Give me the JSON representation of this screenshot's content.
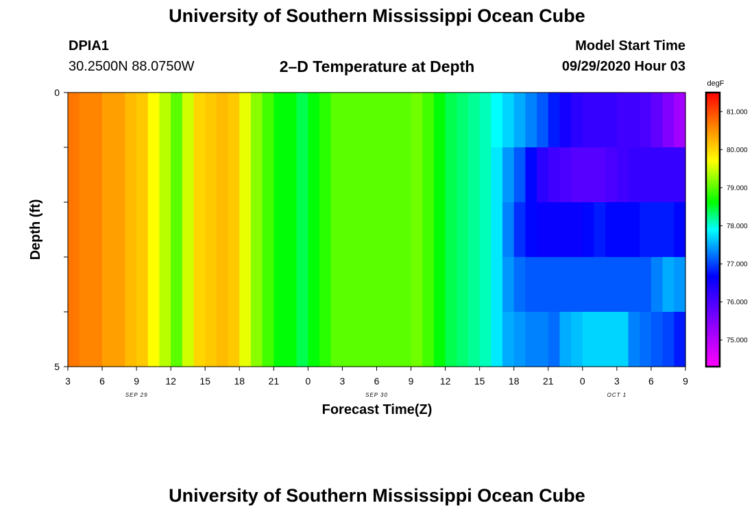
{
  "header": {
    "title": "University of Southern Mississippi Ocean Cube",
    "station_id": "DPIA1",
    "station_coords": "30.2500N 88.0750W",
    "plot_title": "2–D Temperature at Depth",
    "model_start_label": "Model Start Time",
    "model_start_value": "09/29/2020 Hour 03"
  },
  "footer": {
    "title": "University of Southern Mississippi Ocean Cube"
  },
  "chart_data": {
    "type": "heatmap",
    "title": "2–D Temperature at Depth",
    "xlabel": "Forecast Time(Z)",
    "ylabel": "Depth (ft)",
    "x_tick_labels": [
      "3",
      "6",
      "9",
      "12",
      "15",
      "18",
      "21",
      "0",
      "3",
      "6",
      "9",
      "12",
      "15",
      "18",
      "21",
      "0",
      "3",
      "6",
      "9"
    ],
    "date_labels": [
      {
        "label": "SEP 29",
        "tick_index": 2
      },
      {
        "label": "SEP 30",
        "tick_index": 9
      },
      {
        "label": "OCT 1",
        "tick_index": 16
      }
    ],
    "y_tick_labels": [
      {
        "label": "0",
        "value": 0
      },
      {
        "label": "5",
        "value": 5
      }
    ],
    "ylim": [
      0,
      5
    ],
    "depth_levels": 5,
    "time_steps_hours": 54,
    "colorbar": {
      "unit": "degF",
      "min": 74.3,
      "max": 81.5,
      "ticks": [
        "81.000",
        "80.000",
        "79.000",
        "78.000",
        "77.000",
        "76.000",
        "75.000"
      ],
      "tick_values": [
        81,
        80,
        79,
        78,
        77,
        76,
        75
      ]
    },
    "values_degF": [
      [
        80.7,
        80.6,
        80.6,
        80.4,
        80.4,
        80.2,
        80.1,
        79.7,
        79.4,
        79.0,
        79.5,
        80.0,
        80.1,
        80.2,
        80.1,
        79.6,
        79.2,
        78.9,
        78.6,
        78.6,
        78.4,
        78.6,
        78.8,
        79.0,
        79.0,
        79.0,
        79.0,
        79.0,
        79.0,
        79.0,
        79.1,
        78.9,
        78.6,
        78.4,
        78.3,
        78.2,
        78.1,
        77.9,
        77.7,
        77.5,
        77.3,
        77.1,
        76.8,
        76.5,
        76.3,
        76.2,
        76.2,
        76.2,
        76.1,
        76.1,
        76.0,
        75.8,
        75.5,
        75.2
      ],
      [
        80.7,
        80.6,
        80.6,
        80.4,
        80.4,
        80.2,
        80.1,
        79.7,
        79.4,
        79.0,
        79.5,
        80.0,
        80.1,
        80.2,
        80.1,
        79.6,
        79.2,
        78.9,
        78.6,
        78.6,
        78.4,
        78.6,
        78.8,
        79.0,
        79.0,
        79.0,
        79.0,
        79.0,
        79.0,
        79.0,
        79.1,
        78.9,
        78.6,
        78.4,
        78.3,
        78.2,
        78.1,
        77.8,
        77.4,
        77.1,
        76.7,
        76.3,
        76.1,
        76.0,
        75.9,
        75.9,
        75.9,
        76.0,
        76.1,
        76.2,
        76.2,
        76.2,
        76.2,
        76.2
      ],
      [
        80.7,
        80.6,
        80.6,
        80.4,
        80.4,
        80.2,
        80.1,
        79.7,
        79.4,
        79.0,
        79.5,
        80.0,
        80.1,
        80.2,
        80.1,
        79.6,
        79.2,
        78.9,
        78.6,
        78.6,
        78.4,
        78.6,
        78.8,
        79.0,
        79.0,
        79.0,
        79.0,
        79.0,
        79.0,
        79.0,
        79.1,
        78.9,
        78.6,
        78.4,
        78.3,
        78.2,
        78.1,
        77.8,
        77.3,
        76.9,
        76.7,
        76.6,
        76.6,
        76.6,
        76.6,
        76.7,
        76.8,
        76.7,
        76.7,
        76.7,
        76.8,
        76.8,
        76.8,
        76.7
      ],
      [
        80.7,
        80.6,
        80.6,
        80.4,
        80.4,
        80.2,
        80.1,
        79.7,
        79.4,
        79.0,
        79.5,
        80.0,
        80.1,
        80.2,
        80.1,
        79.6,
        79.2,
        78.9,
        78.6,
        78.6,
        78.4,
        78.6,
        78.8,
        79.0,
        79.0,
        79.0,
        79.0,
        79.0,
        79.0,
        79.0,
        79.1,
        78.9,
        78.6,
        78.4,
        78.3,
        78.2,
        78.1,
        77.8,
        77.4,
        77.2,
        77.1,
        77.1,
        77.1,
        77.1,
        77.1,
        77.1,
        77.1,
        77.1,
        77.1,
        77.1,
        77.1,
        77.3,
        77.5,
        77.4
      ],
      [
        80.7,
        80.6,
        80.6,
        80.4,
        80.4,
        80.2,
        80.1,
        79.7,
        79.4,
        79.0,
        79.5,
        80.0,
        80.1,
        80.2,
        80.1,
        79.6,
        79.2,
        78.9,
        78.6,
        78.6,
        78.4,
        78.6,
        78.8,
        79.0,
        79.0,
        79.0,
        79.0,
        79.0,
        79.0,
        79.0,
        79.1,
        78.9,
        78.6,
        78.4,
        78.3,
        78.2,
        78.1,
        77.8,
        77.5,
        77.4,
        77.3,
        77.3,
        77.2,
        77.5,
        77.6,
        77.7,
        77.7,
        77.7,
        77.7,
        77.3,
        77.2,
        77.1,
        77.0,
        76.8
      ]
    ]
  }
}
